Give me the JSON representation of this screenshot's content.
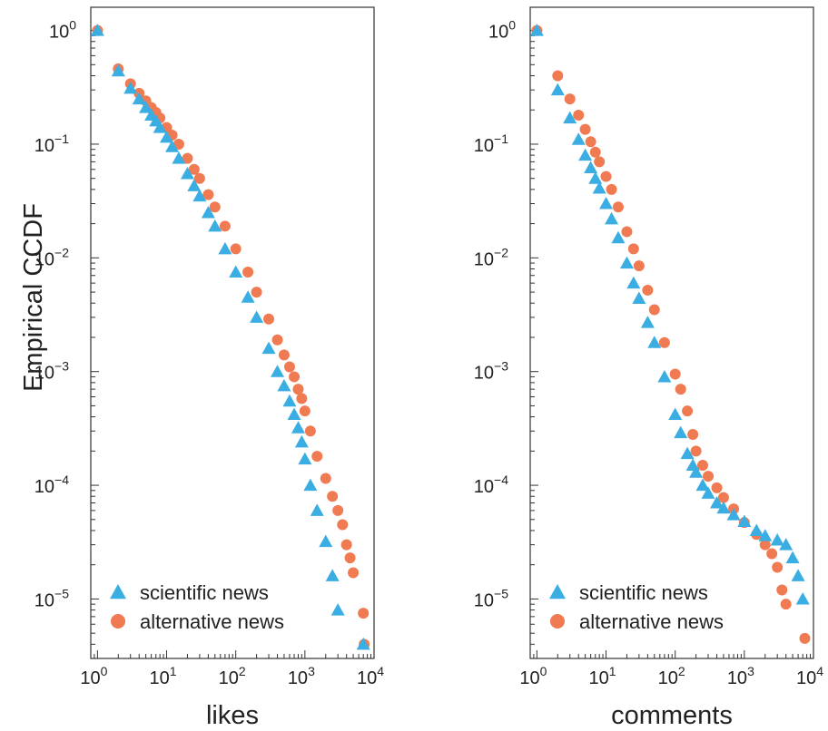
{
  "figure": {
    "ylabel": "Empirical CCDF"
  },
  "colors": {
    "scientific": "#3aaee2",
    "alternative": "#f07a52",
    "frame": "#333333"
  },
  "chart_data": [
    {
      "type": "scatter",
      "xlabel": "likes",
      "ylabel": "Empirical CCDF",
      "xscale": "log",
      "yscale": "log",
      "xlim": [
        0.8,
        10000
      ],
      "ylim": [
        3e-06,
        1.6
      ],
      "xticks": [
        1,
        10,
        100,
        1000,
        10000
      ],
      "yticks": [
        1,
        0.1,
        0.01,
        0.001,
        0.0001,
        1e-05
      ],
      "grid": false,
      "legend": "bottom-left",
      "series": [
        {
          "name": "scientific news",
          "marker": "triangle",
          "color": "#3aaee2",
          "x": [
            1,
            2,
            3,
            4,
            5,
            6,
            7,
            8,
            10,
            12,
            15,
            20,
            25,
            30,
            40,
            50,
            70,
            100,
            150,
            200,
            300,
            400,
            500,
            600,
            700,
            800,
            900,
            1000,
            1200,
            1500,
            2000,
            2500,
            3000,
            7000
          ],
          "y": [
            1.0,
            0.44,
            0.31,
            0.25,
            0.21,
            0.18,
            0.16,
            0.14,
            0.115,
            0.095,
            0.075,
            0.055,
            0.043,
            0.035,
            0.025,
            0.019,
            0.012,
            0.0075,
            0.0045,
            0.003,
            0.0016,
            0.001,
            0.00075,
            0.00055,
            0.00042,
            0.00032,
            0.00024,
            0.00017,
            0.0001,
            6e-05,
            3.2e-05,
            1.6e-05,
            8e-06,
            4e-06
          ]
        },
        {
          "name": "alternative news",
          "marker": "circle",
          "color": "#f07a52",
          "x": [
            1,
            2,
            3,
            4,
            5,
            6,
            7,
            8,
            10,
            12,
            15,
            20,
            25,
            30,
            40,
            50,
            70,
            100,
            150,
            200,
            300,
            400,
            500,
            600,
            700,
            800,
            900,
            1000,
            1200,
            1500,
            2000,
            2500,
            3000,
            3500,
            4000,
            4500,
            5000,
            7000,
            7200
          ],
          "y": [
            1.0,
            0.46,
            0.34,
            0.28,
            0.24,
            0.21,
            0.19,
            0.17,
            0.14,
            0.12,
            0.1,
            0.075,
            0.06,
            0.05,
            0.036,
            0.028,
            0.019,
            0.012,
            0.0075,
            0.005,
            0.0029,
            0.0019,
            0.0014,
            0.0011,
            0.0009,
            0.0007,
            0.00058,
            0.00045,
            0.0003,
            0.00018,
            0.000115,
            8e-05,
            6e-05,
            4.5e-05,
            3e-05,
            2.3e-05,
            1.7e-05,
            7.5e-06,
            4e-06
          ]
        }
      ]
    },
    {
      "type": "scatter",
      "xlabel": "comments",
      "ylabel": "",
      "xscale": "log",
      "yscale": "log",
      "xlim": [
        0.8,
        10000
      ],
      "ylim": [
        3e-06,
        1.6
      ],
      "xticks": [
        1,
        10,
        100,
        1000,
        10000
      ],
      "yticks": [
        1,
        0.1,
        0.01,
        0.001,
        0.0001,
        1e-05
      ],
      "grid": false,
      "legend": "bottom-left",
      "series": [
        {
          "name": "scientific news",
          "marker": "triangle",
          "color": "#3aaee2",
          "x": [
            1,
            2,
            3,
            4,
            5,
            6,
            7,
            8,
            10,
            12,
            15,
            20,
            25,
            30,
            40,
            50,
            70,
            100,
            120,
            150,
            180,
            200,
            250,
            300,
            400,
            500,
            700,
            1000,
            1500,
            2000,
            3000,
            4000,
            5000,
            6000,
            7000
          ],
          "y": [
            1.0,
            0.3,
            0.17,
            0.11,
            0.08,
            0.062,
            0.05,
            0.041,
            0.03,
            0.022,
            0.015,
            0.009,
            0.006,
            0.0044,
            0.0027,
            0.0018,
            0.0009,
            0.00042,
            0.00029,
            0.00019,
            0.00015,
            0.00013,
            0.0001,
            8.5e-05,
            7e-05,
            6.3e-05,
            5.5e-05,
            4.8e-05,
            4e-05,
            3.6e-05,
            3.3e-05,
            3e-05,
            2.3e-05,
            1.6e-05,
            1e-05
          ]
        },
        {
          "name": "alternative news",
          "marker": "circle",
          "color": "#f07a52",
          "x": [
            1,
            2,
            3,
            4,
            5,
            6,
            7,
            8,
            10,
            12,
            15,
            20,
            25,
            30,
            40,
            50,
            70,
            100,
            120,
            150,
            180,
            200,
            250,
            300,
            400,
            500,
            700,
            1000,
            1500,
            2000,
            2500,
            3000,
            3500,
            4000,
            7500
          ],
          "y": [
            1.0,
            0.4,
            0.25,
            0.18,
            0.135,
            0.105,
            0.085,
            0.07,
            0.052,
            0.04,
            0.028,
            0.017,
            0.012,
            0.0085,
            0.0052,
            0.0035,
            0.0018,
            0.00095,
            0.0007,
            0.00045,
            0.00028,
            0.0002,
            0.00015,
            0.00012,
            9.5e-05,
            7.8e-05,
            6.2e-05,
            4.7e-05,
            3.7e-05,
            3e-05,
            2.5e-05,
            1.9e-05,
            1.2e-05,
            9e-06,
            4.5e-06
          ]
        }
      ]
    }
  ]
}
